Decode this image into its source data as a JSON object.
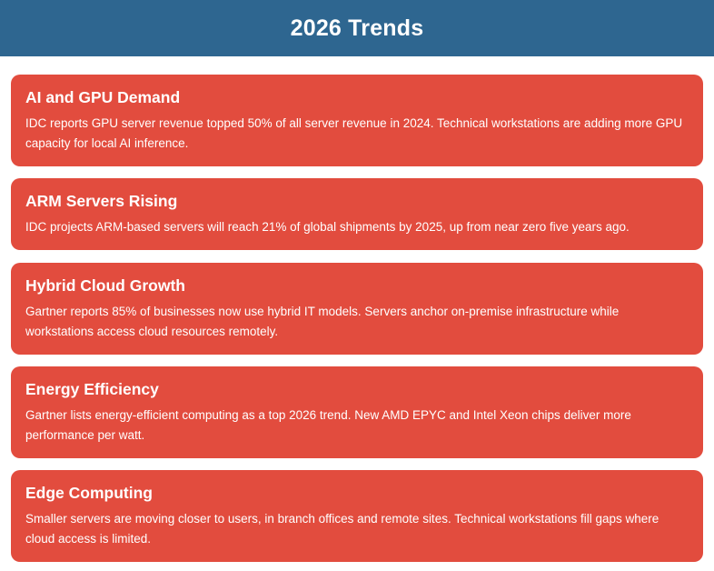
{
  "header": {
    "title": "2026 Trends"
  },
  "colors": {
    "header_bg": "#2e6690",
    "card_bg": "#e24c3e",
    "text": "#ffffff"
  },
  "trends": [
    {
      "title": "AI and GPU Demand",
      "body": "IDC reports GPU server revenue topped 50% of all server revenue in 2024. Technical workstations are adding more GPU capacity for local AI inference."
    },
    {
      "title": "ARM Servers Rising",
      "body": "IDC projects ARM-based servers will reach 21% of global shipments by 2025, up from near zero five years ago."
    },
    {
      "title": "Hybrid Cloud Growth",
      "body": "Gartner reports 85% of businesses now use hybrid IT models. Servers anchor on-premise infrastructure while workstations access cloud resources remotely."
    },
    {
      "title": "Energy Efficiency",
      "body": "Gartner lists energy-efficient computing as a top 2026 trend. New AMD EPYC and Intel Xeon chips deliver more performance per watt."
    },
    {
      "title": "Edge Computing",
      "body": "Smaller servers are moving closer to users, in branch offices and remote sites. Technical workstations fill gaps where cloud access is limited."
    }
  ]
}
